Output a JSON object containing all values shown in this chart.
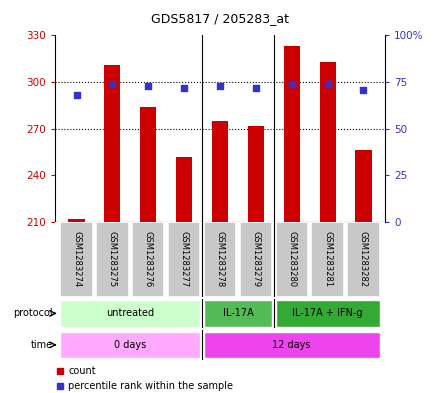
{
  "title": "GDS5817 / 205283_at",
  "samples": [
    "GSM1283274",
    "GSM1283275",
    "GSM1283276",
    "GSM1283277",
    "GSM1283278",
    "GSM1283279",
    "GSM1283280",
    "GSM1283281",
    "GSM1283282"
  ],
  "counts": [
    212,
    311,
    284,
    252,
    275,
    272,
    323,
    313,
    256
  ],
  "percentiles": [
    68,
    74,
    73,
    72,
    73,
    72,
    74,
    74,
    71
  ],
  "ymin": 210,
  "ymax": 330,
  "yticks": [
    210,
    240,
    270,
    300,
    330
  ],
  "y2min": 0,
  "y2max": 100,
  "y2ticks": [
    0,
    25,
    50,
    75,
    100
  ],
  "bar_color": "#cc0000",
  "dot_color": "#3333cc",
  "protocol_colors": [
    "#ccffcc",
    "#55bb55",
    "#33aa33"
  ],
  "protocol_labels": [
    "untreated",
    "IL-17A",
    "IL-17A + IFN-g"
  ],
  "protocol_sample_ranges": [
    [
      0,
      3
    ],
    [
      4,
      5
    ],
    [
      6,
      8
    ]
  ],
  "time_colors": [
    "#ffaaff",
    "#ee44ee"
  ],
  "time_labels": [
    "0 days",
    "12 days"
  ],
  "time_sample_ranges": [
    [
      0,
      3
    ],
    [
      4,
      8
    ]
  ],
  "tick_color_left": "#cc0000",
  "tick_color_right": "#3333cc",
  "bar_width": 0.45,
  "sample_bg": "#c8c8c8",
  "title_fontsize": 9,
  "axis_fontsize": 7.5,
  "label_fontsize": 7,
  "row_label_left": "protocol",
  "row_label_time": "time"
}
